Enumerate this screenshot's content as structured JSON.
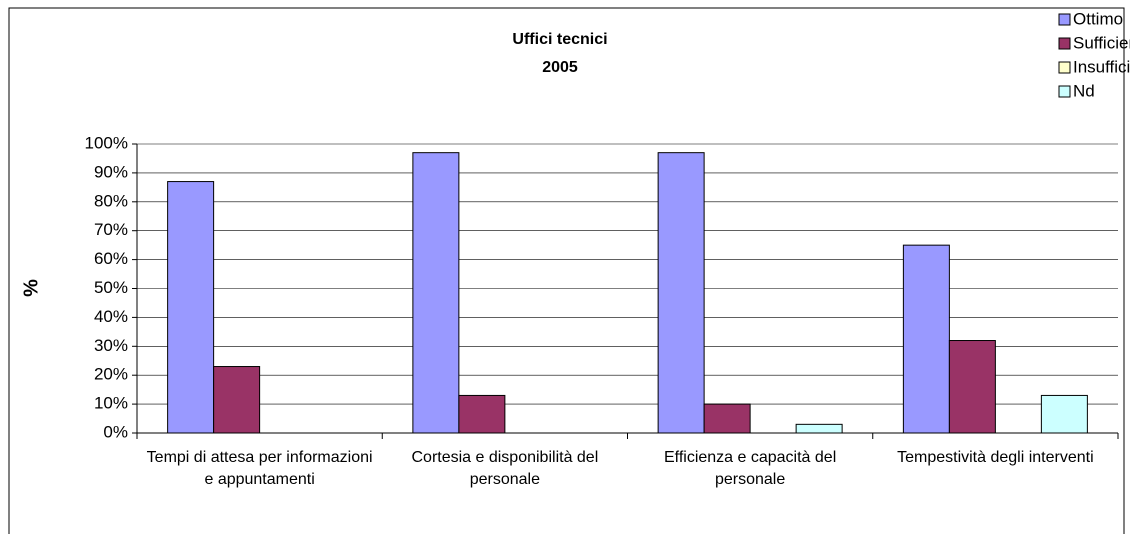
{
  "chart_data": {
    "type": "bar",
    "title": "Uffici tecnici",
    "subtitle": "2005",
    "y_label": "%",
    "categories": [
      "Tempi di attesa per informazioni e appuntamenti",
      "Cortesia e disponibilità del personale",
      "Efficienza e capacità del personale",
      "Tempestività degli interventi"
    ],
    "series": [
      {
        "name": "Ottimo",
        "color": "#9999ff",
        "values": [
          87,
          97,
          97,
          65
        ]
      },
      {
        "name": "Sufficiente",
        "color": "#993366",
        "values": [
          23,
          13,
          10,
          32
        ]
      },
      {
        "name": "Insufficiente",
        "color": "#ffffcc",
        "values": [
          0,
          0,
          0,
          0
        ]
      },
      {
        "name": "Nd",
        "color": "#ccffff",
        "values": [
          0,
          0,
          3,
          13
        ]
      }
    ],
    "ylim": [
      0,
      100
    ],
    "yticks": [
      {
        "value": 0,
        "label": "0%"
      },
      {
        "value": 10,
        "label": "10%"
      },
      {
        "value": 20,
        "label": "20%"
      },
      {
        "value": 30,
        "label": "30%"
      },
      {
        "value": 40,
        "label": "40%"
      },
      {
        "value": 50,
        "label": "50%"
      },
      {
        "value": 60,
        "label": "60%"
      },
      {
        "value": 70,
        "label": "70%"
      },
      {
        "value": 80,
        "label": "80%"
      },
      {
        "value": 90,
        "label": "90%"
      },
      {
        "value": 100,
        "label": "100%"
      }
    ],
    "grid": true,
    "legend": "top-right"
  }
}
